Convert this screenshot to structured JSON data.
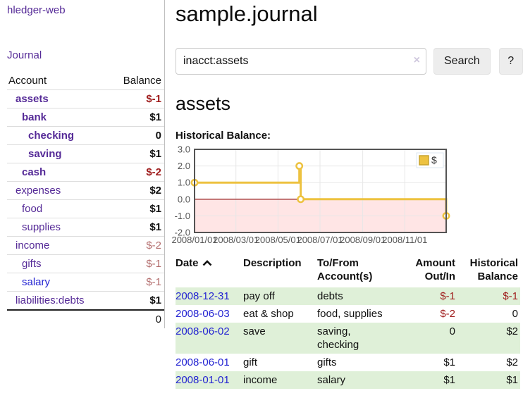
{
  "brand": "hledger-web",
  "nav": {
    "journal": "Journal"
  },
  "sidebar": {
    "header": {
      "account": "Account",
      "balance": "Balance"
    },
    "accounts": [
      {
        "name": "assets",
        "depth": 1,
        "bold": true,
        "balance": "$-1",
        "neg": "strong",
        "balBold": true,
        "link": "purple"
      },
      {
        "name": "bank",
        "depth": 2,
        "bold": true,
        "balance": "$1",
        "neg": "none",
        "balBold": true,
        "link": "purple"
      },
      {
        "name": "checking",
        "depth": 3,
        "bold": true,
        "balance": "0",
        "neg": "none",
        "balBold": true,
        "link": "purple"
      },
      {
        "name": "saving",
        "depth": 3,
        "bold": true,
        "balance": "$1",
        "neg": "none",
        "balBold": true,
        "link": "purple"
      },
      {
        "name": "cash",
        "depth": 2,
        "bold": true,
        "balance": "$-2",
        "neg": "strong",
        "balBold": true,
        "link": "purple"
      },
      {
        "name": "expenses",
        "depth": 1,
        "bold": false,
        "balance": "$2",
        "neg": "none",
        "balBold": true,
        "link": "purple"
      },
      {
        "name": "food",
        "depth": 2,
        "bold": false,
        "balance": "$1",
        "neg": "none",
        "balBold": true,
        "link": "purple"
      },
      {
        "name": "supplies",
        "depth": 2,
        "bold": false,
        "balance": "$1",
        "neg": "none",
        "balBold": true,
        "link": "purple"
      },
      {
        "name": "income",
        "depth": 1,
        "bold": false,
        "balance": "$-2",
        "neg": "muted",
        "balBold": false,
        "link": "purple"
      },
      {
        "name": "gifts",
        "depth": 2,
        "bold": false,
        "balance": "$-1",
        "neg": "muted",
        "balBold": false,
        "link": "purple"
      },
      {
        "name": "salary",
        "depth": 2,
        "bold": false,
        "balance": "$-1",
        "neg": "muted",
        "balBold": false,
        "link": "blue"
      },
      {
        "name": "liabilities:debts",
        "depth": 1,
        "bold": false,
        "balance": "$1",
        "neg": "none",
        "balBold": true,
        "link": "purple"
      }
    ],
    "total": "0"
  },
  "main": {
    "title": "sample.journal",
    "search": {
      "value": "inacct:assets",
      "clear": "×",
      "button": "Search",
      "help": "?"
    },
    "account_heading": "assets",
    "chart_title": "Historical Balance:"
  },
  "chart_data": {
    "type": "line",
    "step": true,
    "title": "Historical Balance:",
    "series": [
      {
        "name": "$",
        "color": "#edc240",
        "points": [
          {
            "date": "2008/01/01",
            "day": 0,
            "value": 1
          },
          {
            "date": "2008/06/01",
            "day": 152,
            "value": 2
          },
          {
            "date": "2008/06/03",
            "day": 154,
            "value": 0
          },
          {
            "date": "2008/12/31",
            "day": 365,
            "value": -1
          }
        ]
      }
    ],
    "ylim": [
      -2,
      3
    ],
    "yticks": [
      "3.0",
      "2.0",
      "1.0",
      "0.0",
      "-1.0",
      "-2.0"
    ],
    "xticks": [
      {
        "label": "2008/01/01",
        "day": 0
      },
      {
        "label": "2008/03/01",
        "day": 60
      },
      {
        "label": "2008/05/01",
        "day": 121
      },
      {
        "label": "2008/07/01",
        "day": 182
      },
      {
        "label": "2008/09/01",
        "day": 244
      },
      {
        "label": "2008/11/01",
        "day": 305
      }
    ],
    "x_total_days": 365,
    "grid": true,
    "legend_position": "top-right",
    "negative_region_fill": "rgba(255,0,0,0.10)",
    "zero_line_color": "#8b0000",
    "axis_text_color": "#545454",
    "border_color": "#545454",
    "grid_color": "#e7e7e7"
  },
  "register": {
    "headers": {
      "date": "Date",
      "description": "Description",
      "accounts": "To/From Account(s)",
      "amount": "Amount Out/In",
      "balance": "Historical Balance"
    },
    "sort": "ascending",
    "rows": [
      {
        "date": "2008-12-31",
        "description": "pay off",
        "accounts": "debts",
        "amount": "$-1",
        "amount_neg": true,
        "balance": "$-1",
        "balance_neg": true
      },
      {
        "date": "2008-06-03",
        "description": "eat & shop",
        "accounts": "food, supplies",
        "amount": "$-2",
        "amount_neg": true,
        "balance": "0",
        "balance_neg": false
      },
      {
        "date": "2008-06-02",
        "description": "save",
        "accounts": "saving, checking",
        "amount": "0",
        "amount_neg": false,
        "balance": "$2",
        "balance_neg": false
      },
      {
        "date": "2008-06-01",
        "description": "gift",
        "accounts": "gifts",
        "amount": "$1",
        "amount_neg": false,
        "balance": "$2",
        "balance_neg": false
      },
      {
        "date": "2008-01-01",
        "description": "income",
        "accounts": "salary",
        "amount": "$1",
        "amount_neg": false,
        "balance": "$1",
        "balance_neg": false
      }
    ]
  },
  "colors": {
    "accent_purple": "#552a97",
    "link_blue": "#2424d2",
    "negative_strong": "#9e1a1a",
    "negative_muted": "#b36d6d",
    "series_gold": "#edc240",
    "stripe_green": "#dff0d8"
  }
}
